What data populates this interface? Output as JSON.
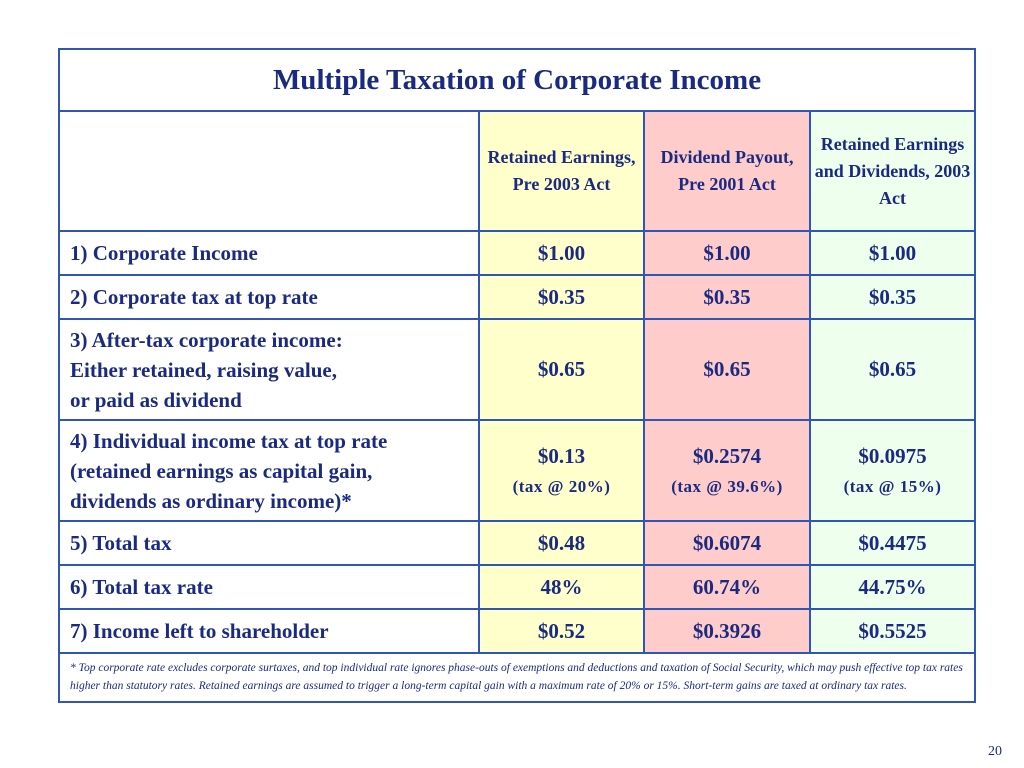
{
  "slide": {
    "title": "Multiple Taxation of Corporate Income",
    "page_number": "20"
  },
  "table": {
    "headers": [
      "",
      "Retained Earnings, Pre 2003 Act",
      "Dividend Payout, Pre 2001 Act",
      "Retained Earnings and Dividends, 2003 Act"
    ],
    "rows": [
      {
        "label": "1) Corporate Income",
        "values": [
          "$1.00",
          "$1.00",
          "$1.00"
        ]
      },
      {
        "label": "2) Corporate tax at top rate",
        "values": [
          "$0.35",
          "$0.35",
          "$0.35"
        ]
      },
      {
        "label_lines": [
          "3) After-tax corporate income:",
          "Either retained, raising value,",
          "or paid as dividend"
        ],
        "values": [
          "$0.65",
          "$0.65",
          "$0.65"
        ]
      },
      {
        "label_lines": [
          "4) Individual income tax at top rate",
          "(retained earnings as capital gain,",
          "dividends as ordinary income)*"
        ],
        "values": [
          "$0.13",
          "$0.2574",
          "$0.0975"
        ],
        "subvalues": [
          "(tax @ 20%)",
          "(tax @ 39.6%)",
          "(tax @ 15%)"
        ]
      },
      {
        "label": "5) Total tax",
        "values": [
          "$0.48",
          "$0.6074",
          "$0.4475"
        ]
      },
      {
        "label": "6) Total tax rate",
        "values": [
          "48%",
          "60.74%",
          "44.75%"
        ]
      },
      {
        "label": "7) Income left to shareholder",
        "values": [
          "$0.52",
          "$0.3926",
          "$0.5525"
        ]
      }
    ],
    "footnote": "*  Top corporate rate excludes corporate surtaxes, and top individual rate ignores phase-outs of exemptions and deductions and taxation of Social Security, which may push effective top tax rates higher than statutory rates.  Retained earnings are assumed to trigger a long-term capital gain with a maximum rate of 20% or 15%.  Short-term gains are taxed at ordinary tax rates."
  },
  "colors": {
    "border": "#2f56b3",
    "text": "#1a2a80",
    "column_1_fill": "#ffffcc",
    "column_2_fill": "#ffcccc",
    "column_3_fill": "#eeffee"
  }
}
